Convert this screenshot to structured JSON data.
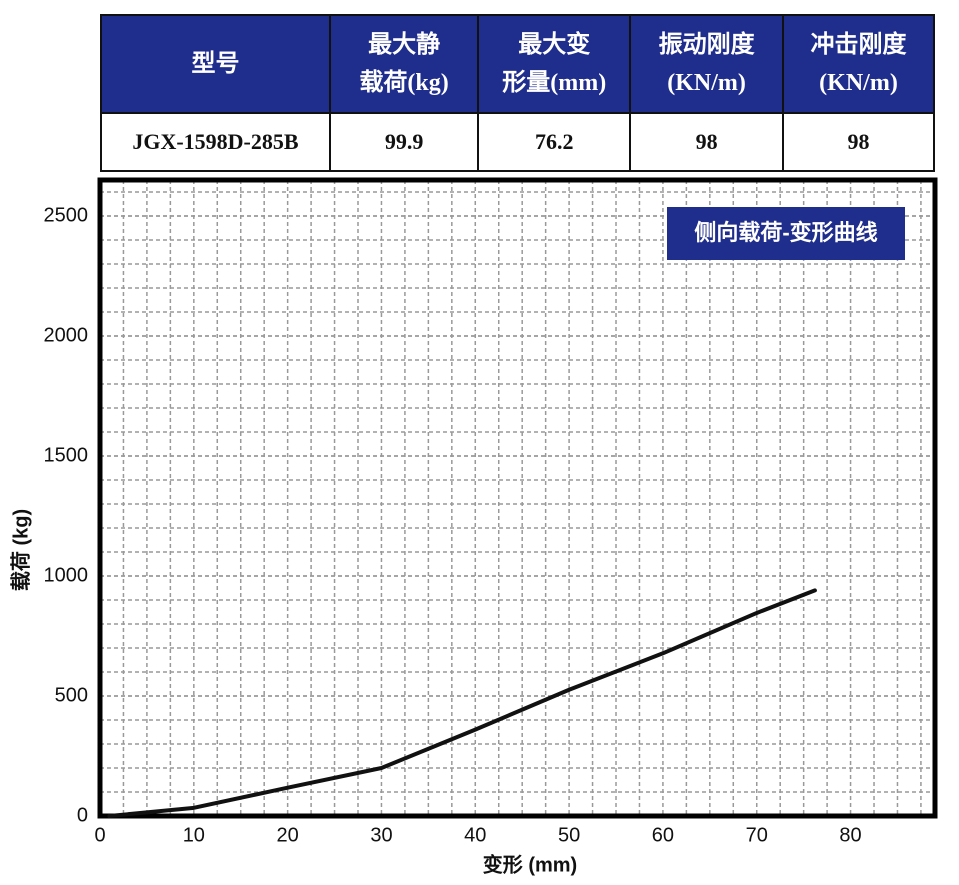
{
  "table": {
    "header": [
      "型号",
      "最大静\n载荷(kg)",
      "最大变\n形量(mm)",
      "振动刚度\n(KN/m)",
      "冲击刚度\n(KN/m)"
    ],
    "rows": [
      [
        "JGX-1598D-285B",
        "99.9",
        "76.2",
        "98",
        "98"
      ]
    ]
  },
  "chart_data": {
    "type": "line",
    "title": "侧向载荷-变形曲线",
    "xlabel": "变形 (mm)",
    "ylabel": "载荷 (kg)",
    "x": [
      1,
      10,
      20,
      30,
      40,
      50,
      60,
      70,
      76.2
    ],
    "series": [
      {
        "name": "载荷",
        "color": "#111111",
        "values": [
          0,
          34,
          118,
          200,
          360,
          526,
          678,
          846,
          940
        ]
      }
    ],
    "xlim": [
      0,
      89
    ],
    "ylim": [
      0,
      2650
    ],
    "xticks": [
      0,
      10,
      20,
      30,
      40,
      50,
      60,
      70,
      80
    ],
    "yticks": [
      0,
      500,
      1000,
      1500,
      2000,
      2500
    ],
    "grid": true
  }
}
